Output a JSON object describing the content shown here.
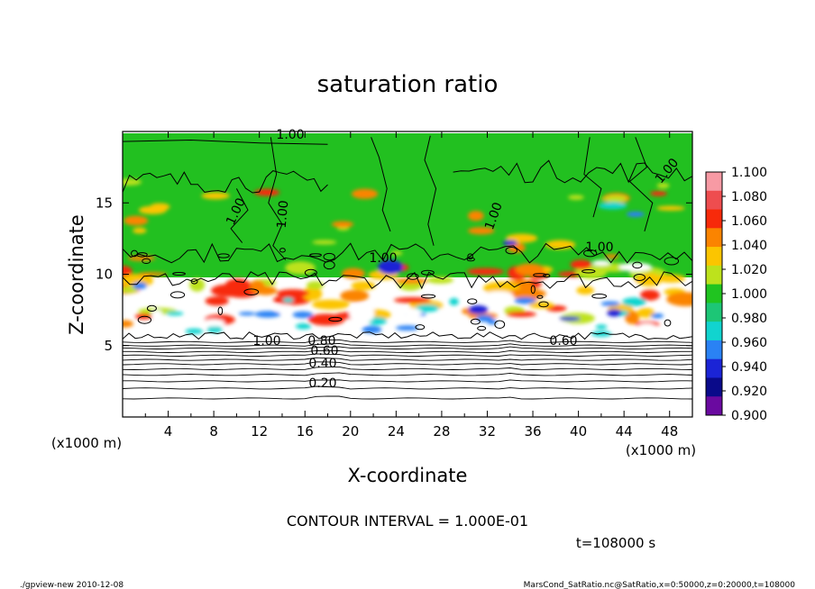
{
  "chart_data": {
    "type": "heatmap",
    "title": "saturation ratio",
    "xlabel": "X-coordinate",
    "ylabel": "Z-coordinate",
    "x_unit": "(x1000 m)",
    "y_unit": "(x1000 m)",
    "xlim": [
      0,
      50
    ],
    "ylim": [
      0,
      20
    ],
    "x_ticks": [
      "4",
      "8",
      "12",
      "16",
      "20",
      "24",
      "28",
      "32",
      "36",
      "40",
      "44",
      "48"
    ],
    "y_ticks": [
      "5",
      "10",
      "15"
    ],
    "colorbar": {
      "levels": [
        "1.100",
        "1.080",
        "1.060",
        "1.040",
        "1.020",
        "1.000",
        "0.980",
        "0.960",
        "0.940",
        "0.920",
        "0.900"
      ],
      "colors": [
        "#f79aa4",
        "#ee4d4f",
        "#f72a0a",
        "#fb8400",
        "#fcc500",
        "#bde21c",
        "#20c420",
        "#1dc676",
        "#11d4cf",
        "#2a82f4",
        "#1b24d6",
        "#0a0a8a",
        "#6a0aa0"
      ]
    },
    "contour_labels": [
      "1.00",
      "1.00",
      "1.00",
      "1.00",
      "1.00",
      "1.00",
      "1.00",
      "1.00",
      "0.80",
      "0.60",
      "0.40",
      "0.20",
      "0.60"
    ],
    "contour_interval": "CONTOUR INTERVAL = 1.000E-01",
    "time_label": "t=108000 s"
  },
  "footer": {
    "left": "./gpview-new  2010-12-08",
    "right": "MarsCond_SatRatio.nc@SatRatio,x=0:50000,z=0:20000,t=108000"
  }
}
